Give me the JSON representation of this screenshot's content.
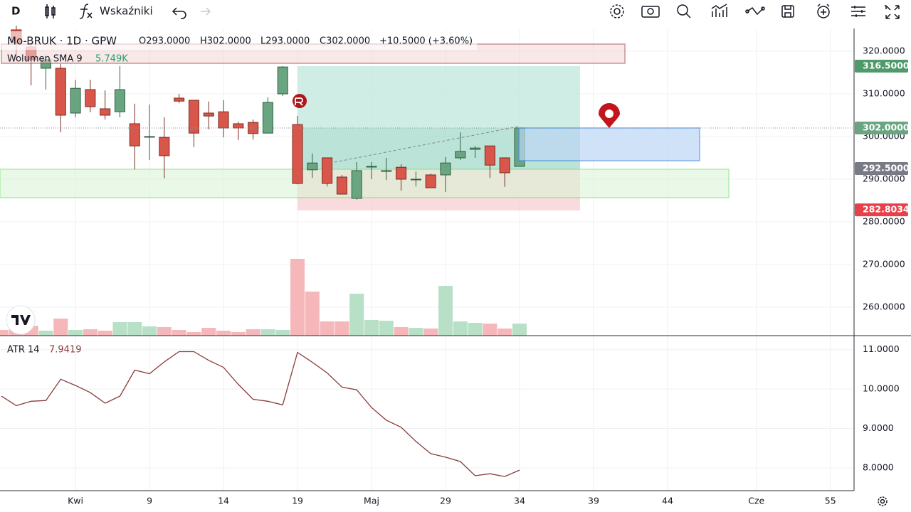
{
  "toolbar": {
    "interval": "D",
    "indicators": "Wskaźniki"
  },
  "chart_data": [
    {
      "type": "candlestick",
      "symbol": "Mo-BRUK · 1D · GPW",
      "ohlc_labels": [
        "O293.0000",
        "H302.0000",
        "L293.0000",
        "C302.0000",
        "+10.5000 (+3.60%)"
      ],
      "x": [
        0,
        1,
        2,
        3,
        4,
        5,
        6,
        7,
        8,
        9,
        10,
        11,
        12,
        13,
        14,
        15,
        16,
        17,
        18,
        19,
        20,
        21,
        22,
        23,
        24,
        25,
        26,
        27,
        28,
        29,
        30,
        31,
        32,
        33,
        34
      ],
      "open": [
        325,
        321,
        316,
        316,
        305.5,
        311,
        306.5,
        305.8,
        303,
        300,
        299.8,
        309,
        308.5,
        305.5,
        305.8,
        303,
        303.3,
        300.8,
        310,
        302.8,
        292.2,
        295,
        290.5,
        285.5,
        293,
        292,
        292.8,
        290,
        291,
        291,
        295,
        297,
        297.8,
        295,
        293
      ],
      "high": [
        326,
        322,
        319,
        317,
        313.3,
        313.3,
        310.8,
        316.5,
        307.7,
        307.5,
        304.5,
        310,
        308.5,
        308.2,
        308.5,
        303.5,
        304,
        309.2,
        316.5,
        304.8,
        296,
        295,
        291,
        294,
        294,
        295,
        293.5,
        291.8,
        291.3,
        295.2,
        301,
        297.8,
        297.8,
        295,
        302
      ],
      "low": [
        318,
        312,
        311,
        301,
        304.5,
        305.7,
        304,
        304.5,
        292.3,
        294.5,
        290.2,
        307.8,
        297.5,
        301.7,
        299.8,
        299.2,
        299.3,
        300.7,
        309.5,
        288.8,
        290.3,
        288.3,
        286.5,
        285.2,
        290,
        289.8,
        287.3,
        288.3,
        288,
        287,
        294.5,
        295,
        290.3,
        288.2,
        293
      ],
      "close": [
        322,
        318,
        318,
        305,
        311.3,
        307,
        305,
        311,
        297.8,
        300,
        295.5,
        308.3,
        300.8,
        304.8,
        302,
        302,
        300.7,
        308,
        316.3,
        289,
        293.8,
        289,
        286.5,
        292,
        293,
        292,
        290,
        290,
        288,
        293.8,
        296.5,
        297.3,
        293.3,
        291.5,
        302
      ],
      "up_color": "#6aa582",
      "down_color": "#d9574a",
      "xlim": [
        -1.1,
        56.6
      ],
      "xticks": [
        {
          "value": 4,
          "label": "Kwi"
        },
        9,
        14,
        19,
        {
          "value": 24,
          "label": "Maj"
        },
        29,
        34,
        39,
        44,
        {
          "value": 50,
          "label": "Cze"
        },
        55
      ],
      "ylim": [
        253.33,
        325.33
      ],
      "yticks": [
        {
          "value": 260,
          "label": "260.0000"
        },
        {
          "value": 270,
          "label": "270.0000"
        },
        {
          "value": 280,
          "label": "280.0000"
        },
        {
          "value": 290,
          "label": "290.0000"
        },
        {
          "value": 300,
          "label": "300.0000"
        },
        {
          "value": 310,
          "label": "310.0000"
        },
        {
          "value": 320,
          "label": "320.0000"
        }
      ],
      "price_labels": [
        {
          "value": 316.5,
          "label": "316.5000",
          "color": "#4f9a6b"
        },
        {
          "value": 302,
          "label": "302.0000",
          "color": "#6aa582"
        },
        {
          "value": 292.5,
          "label": "292.5000",
          "color": "#787b86"
        },
        {
          "value": 282.8034,
          "label": "282.8034",
          "color": "#e8404a"
        }
      ],
      "grid": true
    },
    {
      "type": "bar",
      "name": "Wolumen SMA 9",
      "sma_label": "5.749K",
      "x": [
        -1,
        0,
        1,
        2,
        3,
        4,
        5,
        6,
        7,
        8,
        9,
        10,
        11,
        12,
        13,
        14,
        15,
        16,
        17,
        18,
        19,
        20,
        21,
        22,
        23,
        24,
        25,
        26,
        27,
        28,
        29,
        30,
        31,
        32,
        33,
        34
      ],
      "values": [
        4,
        7,
        7,
        3.5,
        12,
        4,
        4.5,
        3.5,
        9.5,
        9.5,
        6.5,
        6,
        4,
        2.5,
        5.5,
        3.5,
        2.5,
        4.5,
        4.5,
        4,
        54,
        31,
        10,
        10,
        29.5,
        11,
        10.5,
        6,
        5.5,
        5,
        35,
        10,
        9,
        8.5,
        5,
        8.5
      ],
      "colors": [
        "#f6b7bb",
        "#f6b7bb",
        "#f6b7bb",
        "#b7e0c6",
        "#f6b7bb",
        "#b7e0c6",
        "#f6b7bb",
        "#f6b7bb",
        "#b7e0c6",
        "#b7e0c6",
        "#b7e0c6",
        "#f6b7bb",
        "#f6b7bb",
        "#f6b7bb",
        "#f6b7bb",
        "#f6b7bb",
        "#f6b7bb",
        "#f6b7bb",
        "#b7e0c6",
        "#b7e0c6",
        "#f6b7bb",
        "#f6b7bb",
        "#f6b7bb",
        "#f6b7bb",
        "#b7e0c6",
        "#b7e0c6",
        "#b7e0c6",
        "#f6b7bb",
        "#b7e0c6",
        "#f6b7bb",
        "#b7e0c6",
        "#b7e0c6",
        "#b7e0c6",
        "#f6b7bb",
        "#f6b7bb",
        "#b7e0c6"
      ],
      "ylim": [
        0,
        216
      ]
    },
    {
      "type": "line",
      "name": "ATR 14",
      "last_label": "7.9419",
      "color": "#8b3a3a",
      "x": [
        -1,
        0,
        1,
        2,
        3,
        4,
        5,
        6,
        7,
        8,
        9,
        10,
        11,
        12,
        13,
        14,
        15,
        16,
        17,
        18,
        19,
        20,
        21,
        22,
        23,
        24,
        25,
        26,
        27,
        28,
        29,
        30,
        31,
        32,
        33,
        34
      ],
      "values": [
        9.82,
        9.58,
        9.69,
        9.71,
        10.25,
        10.09,
        9.91,
        9.64,
        9.82,
        10.48,
        10.39,
        10.69,
        10.95,
        10.95,
        10.73,
        10.55,
        10.12,
        9.74,
        9.69,
        9.6,
        10.93,
        10.68,
        10.41,
        10.05,
        9.98,
        9.53,
        9.21,
        9.03,
        8.67,
        8.36,
        8.27,
        8.16,
        7.8,
        7.85,
        7.78,
        7.9419
      ],
      "ylim": [
        7.42,
        11.32
      ],
      "yticks": [
        {
          "value": 8,
          "label": "8.0000"
        },
        {
          "value": 9,
          "label": "9.0000"
        },
        {
          "value": 10,
          "label": "10.0000"
        },
        {
          "value": 11,
          "label": "11.0000"
        }
      ]
    }
  ]
}
